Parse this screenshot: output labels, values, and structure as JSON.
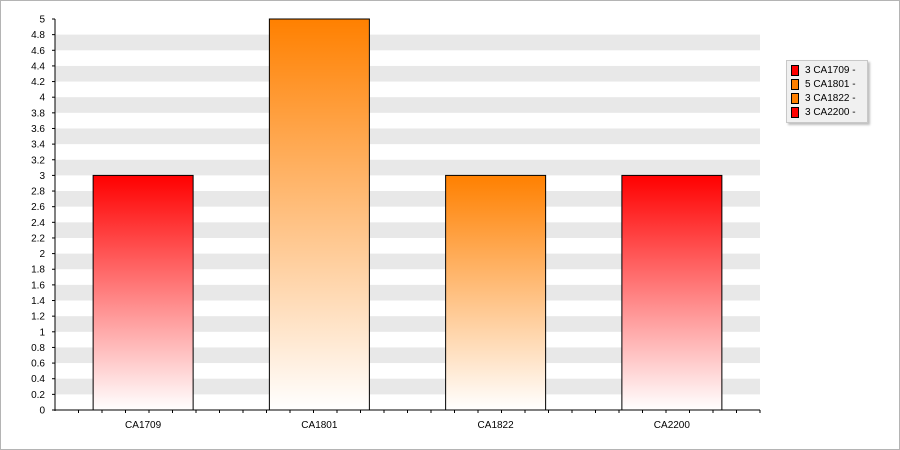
{
  "chart_data": {
    "type": "bar",
    "categories": [
      "CA1709",
      "CA1801",
      "CA1822",
      "CA2200"
    ],
    "values": [
      3,
      5,
      3,
      3
    ],
    "colors": [
      "#ff0000",
      "#ff8000",
      "#ff8000",
      "#ff0000"
    ],
    "ylim": [
      0,
      5
    ],
    "ytick_step": 0.2,
    "yticks": [
      "0",
      "0.2",
      "0.4",
      "0.6",
      "0.8",
      "1",
      "1.2",
      "1.4",
      "1.6",
      "1.8",
      "2",
      "2.2",
      "2.4",
      "2.6",
      "2.8",
      "3",
      "3.2",
      "3.4",
      "3.6",
      "3.8",
      "4",
      "4.2",
      "4.4",
      "4.6",
      "4.8",
      "5"
    ],
    "grid": "alternating horizontal bands",
    "band_color": "#e8e8e8",
    "legend_position": "right",
    "legend": [
      {
        "label": "3 CA1709 -",
        "color": "#ff0000"
      },
      {
        "label": "5 CA1801 -",
        "color": "#ff8000"
      },
      {
        "label": "3 CA1822 -",
        "color": "#ff8000"
      },
      {
        "label": "3 CA2200 -",
        "color": "#ff0000"
      }
    ]
  }
}
